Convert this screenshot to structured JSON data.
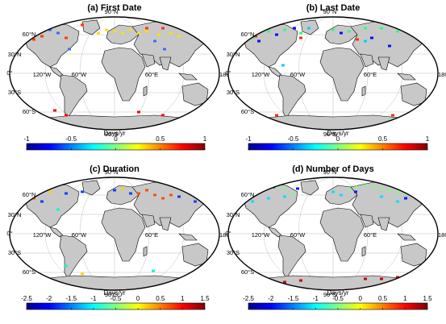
{
  "panels": [
    {
      "title": "(a) First Date",
      "colorbar": {
        "label": "Days/yr",
        "min": -1,
        "max": 1,
        "ticks": [
          "-1",
          "-0.5",
          "0",
          "0.5",
          "1"
        ]
      }
    },
    {
      "title": "(b) Last Date",
      "colorbar": {
        "label": "Days/yr",
        "min": -1,
        "max": 1,
        "ticks": [
          "-1",
          "-0.5",
          "0",
          "0.5",
          "1"
        ]
      }
    },
    {
      "title": "(c) Duration",
      "colorbar": {
        "label": "Days/yr",
        "min": -2.5,
        "max": 1.5,
        "ticks": [
          "-2.5",
          "-2",
          "-1.5",
          "-1",
          "-0.5",
          "0",
          "0.5",
          "1",
          "1.5"
        ]
      }
    },
    {
      "title": "(d) Number of Days",
      "colorbar": {
        "label": "Days/yr",
        "min": -2.5,
        "max": 1.5,
        "ticks": [
          "-2.5",
          "-2",
          "-1.5",
          "-1",
          "-0.5",
          "0",
          "0.5",
          "1",
          "1.5"
        ]
      }
    }
  ],
  "map_labels": {
    "lat_90n": "90°N",
    "lat_60n": "60°N",
    "lat_30n": "30°N",
    "lat_0": "0°",
    "lat_30s": "30°S",
    "lat_60s": "60°S",
    "lat_90s": "90°S",
    "lon_120w": "120°W",
    "lon_60w": "60°W",
    "lon_60e": "60°E",
    "lon_180w": "180°W"
  },
  "colors": {
    "land": "#c8c8c8",
    "coast": "#000000",
    "grid": "#bdbdbd",
    "ocean": "#ffffff"
  }
}
